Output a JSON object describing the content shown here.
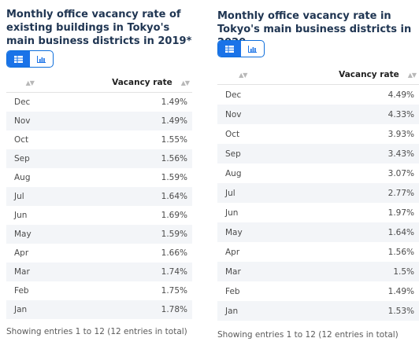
{
  "panels": [
    {
      "title": "Monthly office vacancy rate of existing buildings in Tokyo's main business districts in 2019*",
      "column_header": "Vacancy rate",
      "rows": [
        {
          "month": "Dec",
          "rate": "1.49%"
        },
        {
          "month": "Nov",
          "rate": "1.49%"
        },
        {
          "month": "Oct",
          "rate": "1.55%"
        },
        {
          "month": "Sep",
          "rate": "1.56%"
        },
        {
          "month": "Aug",
          "rate": "1.59%"
        },
        {
          "month": "Jul",
          "rate": "1.64%"
        },
        {
          "month": "Jun",
          "rate": "1.69%"
        },
        {
          "month": "May",
          "rate": "1.59%"
        },
        {
          "month": "Apr",
          "rate": "1.66%"
        },
        {
          "month": "Mar",
          "rate": "1.74%"
        },
        {
          "month": "Feb",
          "rate": "1.75%"
        },
        {
          "month": "Jan",
          "rate": "1.78%"
        }
      ],
      "footer": "Showing entries 1 to 12 (12 entries in total)",
      "view": "table"
    },
    {
      "title": "Monthly office vacancy rate in Tokyo's main business districts in 2020",
      "column_header": "Vacancy rate",
      "rows": [
        {
          "month": "Dec",
          "rate": "4.49%"
        },
        {
          "month": "Nov",
          "rate": "4.33%"
        },
        {
          "month": "Oct",
          "rate": "3.93%"
        },
        {
          "month": "Sep",
          "rate": "3.43%"
        },
        {
          "month": "Aug",
          "rate": "3.07%"
        },
        {
          "month": "Jul",
          "rate": "2.77%"
        },
        {
          "month": "Jun",
          "rate": "1.97%"
        },
        {
          "month": "May",
          "rate": "1.64%"
        },
        {
          "month": "Apr",
          "rate": "1.56%"
        },
        {
          "month": "Mar",
          "rate": "1.5%"
        },
        {
          "month": "Feb",
          "rate": "1.49%"
        },
        {
          "month": "Jan",
          "rate": "1.53%"
        }
      ],
      "footer": "Showing entries 1 to 12 (12 entries in total)",
      "view": "table"
    }
  ],
  "icons": {
    "table_view": "table-icon",
    "chart_view": "bar-chart-icon",
    "sort": "sort-icon"
  },
  "colors": {
    "title": "#1f3552",
    "accent": "#1a73e8",
    "stripe": "#f3f5f8"
  }
}
